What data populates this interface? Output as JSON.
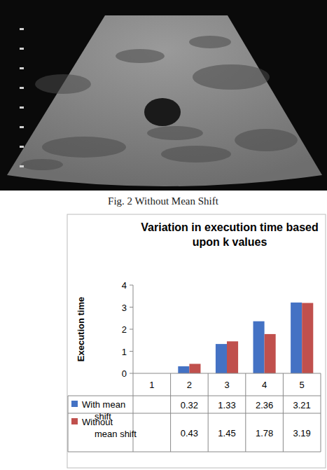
{
  "figure": {
    "caption": "Fig. 2    Without Mean Shift"
  },
  "chart_data": {
    "type": "bar",
    "title": "Variation in execution time based upon k values",
    "y_label": "Execution time",
    "categories": [
      "1",
      "2",
      "3",
      "4",
      "5"
    ],
    "series": [
      {
        "name": "With mean shift",
        "color": "#4472c4",
        "values": [
          null,
          0.32,
          1.33,
          2.36,
          3.21
        ]
      },
      {
        "name": "Without mean shift",
        "color": "#c0504d",
        "values": [
          null,
          0.43,
          1.45,
          1.78,
          3.19
        ]
      }
    ],
    "ylim": [
      0,
      4
    ],
    "yticks": [
      0,
      1,
      2,
      3,
      4
    ],
    "grid": false,
    "data_labels": true
  }
}
